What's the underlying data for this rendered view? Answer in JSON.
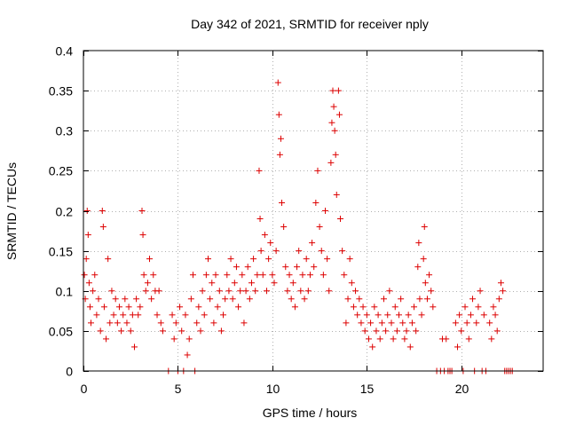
{
  "chart_data": {
    "type": "scatter",
    "title": "Day 342 of 2021, SRMTID for receiver nply",
    "xlabel": "GPS time / hours",
    "ylabel": "SRMTID / TECUs",
    "xlim": [
      0,
      24.333
    ],
    "ylim": [
      0,
      0.4
    ],
    "xticks": [
      0,
      5,
      10,
      15,
      20
    ],
    "yticks": [
      0,
      0.05,
      0.1,
      0.15,
      0.2,
      0.25,
      0.3,
      0.35,
      0.4
    ],
    "xtick_labels": [
      "0",
      "5",
      "10",
      "15",
      "20"
    ],
    "ytick_labels": [
      "0",
      "0.05",
      "0.1",
      "0.15",
      "0.2",
      "0.25",
      "0.3",
      "0.35",
      "0.4"
    ],
    "grid": true,
    "marker": "+",
    "point_color": "#dd0000",
    "series": [
      {
        "name": "SRMTID",
        "points": [
          [
            0.05,
            0.12
          ],
          [
            0.1,
            0.09
          ],
          [
            0.15,
            0.14
          ],
          [
            0.2,
            0.2
          ],
          [
            0.25,
            0.17
          ],
          [
            0.3,
            0.11
          ],
          [
            0.35,
            0.08
          ],
          [
            0.4,
            0.06
          ],
          [
            0.5,
            0.1
          ],
          [
            0.6,
            0.12
          ],
          [
            0.7,
            0.07
          ],
          [
            0.8,
            0.09
          ],
          [
            0.9,
            0.05
          ],
          [
            1.0,
            0.2
          ],
          [
            1.05,
            0.18
          ],
          [
            1.1,
            0.08
          ],
          [
            1.2,
            0.04
          ],
          [
            1.3,
            0.14
          ],
          [
            1.4,
            0.06
          ],
          [
            1.5,
            0.1
          ],
          [
            1.6,
            0.07
          ],
          [
            1.7,
            0.09
          ],
          [
            1.8,
            0.06
          ],
          [
            1.9,
            0.08
          ],
          [
            2.0,
            0.05
          ],
          [
            2.1,
            0.07
          ],
          [
            2.2,
            0.09
          ],
          [
            2.3,
            0.06
          ],
          [
            2.4,
            0.08
          ],
          [
            2.5,
            0.05
          ],
          [
            2.6,
            0.07
          ],
          [
            2.7,
            0.03
          ],
          [
            2.8,
            0.09
          ],
          [
            2.9,
            0.07
          ],
          [
            3.0,
            0.08
          ],
          [
            3.1,
            0.2
          ],
          [
            3.15,
            0.17
          ],
          [
            3.2,
            0.12
          ],
          [
            3.3,
            0.1
          ],
          [
            3.4,
            0.11
          ],
          [
            3.5,
            0.14
          ],
          [
            3.6,
            0.09
          ],
          [
            3.7,
            0.12
          ],
          [
            3.8,
            0.1
          ],
          [
            3.9,
            0.07
          ],
          [
            4.0,
            0.1
          ],
          [
            4.1,
            0.06
          ],
          [
            4.2,
            0.05
          ],
          [
            4.5,
            0.0
          ],
          [
            4.7,
            0.07
          ],
          [
            4.8,
            0.04
          ],
          [
            4.9,
            0.06
          ],
          [
            5.0,
            0.0
          ],
          [
            5.1,
            0.08
          ],
          [
            5.2,
            0.05
          ],
          [
            5.3,
            0.0
          ],
          [
            5.4,
            0.07
          ],
          [
            5.5,
            0.02
          ],
          [
            5.6,
            0.04
          ],
          [
            5.7,
            0.09
          ],
          [
            5.8,
            0.12
          ],
          [
            5.9,
            0.0
          ],
          [
            6.0,
            0.06
          ],
          [
            6.1,
            0.08
          ],
          [
            6.2,
            0.05
          ],
          [
            6.3,
            0.1
          ],
          [
            6.4,
            0.07
          ],
          [
            6.5,
            0.12
          ],
          [
            6.6,
            0.14
          ],
          [
            6.7,
            0.09
          ],
          [
            6.8,
            0.11
          ],
          [
            6.9,
            0.06
          ],
          [
            7.0,
            0.12
          ],
          [
            7.1,
            0.08
          ],
          [
            7.2,
            0.1
          ],
          [
            7.3,
            0.05
          ],
          [
            7.4,
            0.07
          ],
          [
            7.5,
            0.09
          ],
          [
            7.6,
            0.12
          ],
          [
            7.7,
            0.1
          ],
          [
            7.8,
            0.14
          ],
          [
            7.9,
            0.09
          ],
          [
            8.0,
            0.11
          ],
          [
            8.1,
            0.13
          ],
          [
            8.2,
            0.08
          ],
          [
            8.3,
            0.1
          ],
          [
            8.4,
            0.12
          ],
          [
            8.5,
            0.06
          ],
          [
            8.6,
            0.1
          ],
          [
            8.7,
            0.13
          ],
          [
            8.8,
            0.09
          ],
          [
            8.9,
            0.11
          ],
          [
            9.0,
            0.14
          ],
          [
            9.1,
            0.1
          ],
          [
            9.2,
            0.12
          ],
          [
            9.3,
            0.25
          ],
          [
            9.35,
            0.19
          ],
          [
            9.4,
            0.15
          ],
          [
            9.5,
            0.12
          ],
          [
            9.6,
            0.17
          ],
          [
            9.7,
            0.1
          ],
          [
            9.8,
            0.14
          ],
          [
            9.9,
            0.16
          ],
          [
            10.0,
            0.12
          ],
          [
            10.1,
            0.11
          ],
          [
            10.2,
            0.15
          ],
          [
            10.3,
            0.36
          ],
          [
            10.35,
            0.32
          ],
          [
            10.4,
            0.27
          ],
          [
            10.45,
            0.29
          ],
          [
            10.5,
            0.21
          ],
          [
            10.6,
            0.18
          ],
          [
            10.7,
            0.13
          ],
          [
            10.8,
            0.1
          ],
          [
            10.9,
            0.12
          ],
          [
            11.0,
            0.09
          ],
          [
            11.1,
            0.11
          ],
          [
            11.2,
            0.08
          ],
          [
            11.3,
            0.13
          ],
          [
            11.4,
            0.15
          ],
          [
            11.5,
            0.1
          ],
          [
            11.6,
            0.12
          ],
          [
            11.7,
            0.09
          ],
          [
            11.8,
            0.14
          ],
          [
            11.9,
            0.1
          ],
          [
            12.0,
            0.12
          ],
          [
            12.1,
            0.16
          ],
          [
            12.2,
            0.13
          ],
          [
            12.3,
            0.21
          ],
          [
            12.4,
            0.25
          ],
          [
            12.5,
            0.18
          ],
          [
            12.6,
            0.15
          ],
          [
            12.7,
            0.12
          ],
          [
            12.8,
            0.2
          ],
          [
            12.9,
            0.14
          ],
          [
            13.0,
            0.1
          ],
          [
            13.1,
            0.26
          ],
          [
            13.15,
            0.31
          ],
          [
            13.2,
            0.35
          ],
          [
            13.25,
            0.33
          ],
          [
            13.3,
            0.3
          ],
          [
            13.35,
            0.27
          ],
          [
            13.4,
            0.22
          ],
          [
            13.5,
            0.35
          ],
          [
            13.55,
            0.32
          ],
          [
            13.6,
            0.19
          ],
          [
            13.7,
            0.15
          ],
          [
            13.8,
            0.12
          ],
          [
            13.9,
            0.06
          ],
          [
            14.0,
            0.09
          ],
          [
            14.1,
            0.14
          ],
          [
            14.2,
            0.11
          ],
          [
            14.3,
            0.08
          ],
          [
            14.4,
            0.1
          ],
          [
            14.5,
            0.07
          ],
          [
            14.6,
            0.09
          ],
          [
            14.7,
            0.06
          ],
          [
            14.8,
            0.08
          ],
          [
            14.9,
            0.05
          ],
          [
            15.0,
            0.07
          ],
          [
            15.1,
            0.04
          ],
          [
            15.2,
            0.06
          ],
          [
            15.3,
            0.03
          ],
          [
            15.4,
            0.08
          ],
          [
            15.5,
            0.05
          ],
          [
            15.6,
            0.07
          ],
          [
            15.7,
            0.04
          ],
          [
            15.8,
            0.06
          ],
          [
            15.9,
            0.09
          ],
          [
            16.0,
            0.05
          ],
          [
            16.1,
            0.07
          ],
          [
            16.2,
            0.1
          ],
          [
            16.3,
            0.06
          ],
          [
            16.4,
            0.04
          ],
          [
            16.5,
            0.08
          ],
          [
            16.6,
            0.05
          ],
          [
            16.7,
            0.07
          ],
          [
            16.8,
            0.09
          ],
          [
            16.9,
            0.06
          ],
          [
            17.0,
            0.04
          ],
          [
            17.1,
            0.05
          ],
          [
            17.2,
            0.07
          ],
          [
            17.3,
            0.03
          ],
          [
            17.4,
            0.06
          ],
          [
            17.5,
            0.08
          ],
          [
            17.6,
            0.05
          ],
          [
            17.7,
            0.13
          ],
          [
            17.75,
            0.16
          ],
          [
            17.8,
            0.09
          ],
          [
            17.9,
            0.07
          ],
          [
            18.0,
            0.14
          ],
          [
            18.05,
            0.18
          ],
          [
            18.1,
            0.11
          ],
          [
            18.2,
            0.09
          ],
          [
            18.3,
            0.12
          ],
          [
            18.4,
            0.1
          ],
          [
            18.5,
            0.08
          ],
          [
            18.7,
            0.0
          ],
          [
            18.9,
            0.0
          ],
          [
            19.0,
            0.04
          ],
          [
            19.1,
            0.0
          ],
          [
            19.2,
            0.04
          ],
          [
            19.3,
            0.0
          ],
          [
            19.4,
            0.0
          ],
          [
            19.5,
            0.0
          ],
          [
            19.7,
            0.06
          ],
          [
            19.8,
            0.03
          ],
          [
            19.9,
            0.07
          ],
          [
            20.0,
            0.05
          ],
          [
            20.1,
            0.0
          ],
          [
            20.2,
            0.08
          ],
          [
            20.3,
            0.06
          ],
          [
            20.4,
            0.04
          ],
          [
            20.5,
            0.07
          ],
          [
            20.6,
            0.09
          ],
          [
            20.7,
            0.0
          ],
          [
            20.8,
            0.06
          ],
          [
            20.9,
            0.08
          ],
          [
            21.0,
            0.1
          ],
          [
            21.1,
            0.0
          ],
          [
            21.2,
            0.07
          ],
          [
            21.3,
            0.0
          ],
          [
            21.5,
            0.06
          ],
          [
            21.6,
            0.04
          ],
          [
            21.7,
            0.08
          ],
          [
            21.8,
            0.07
          ],
          [
            21.9,
            0.05
          ],
          [
            22.0,
            0.09
          ],
          [
            22.1,
            0.11
          ],
          [
            22.2,
            0.1
          ],
          [
            22.3,
            0.0
          ],
          [
            22.4,
            0.0
          ],
          [
            22.5,
            0.0
          ],
          [
            22.6,
            0.0
          ],
          [
            22.7,
            0.0
          ]
        ]
      }
    ]
  }
}
